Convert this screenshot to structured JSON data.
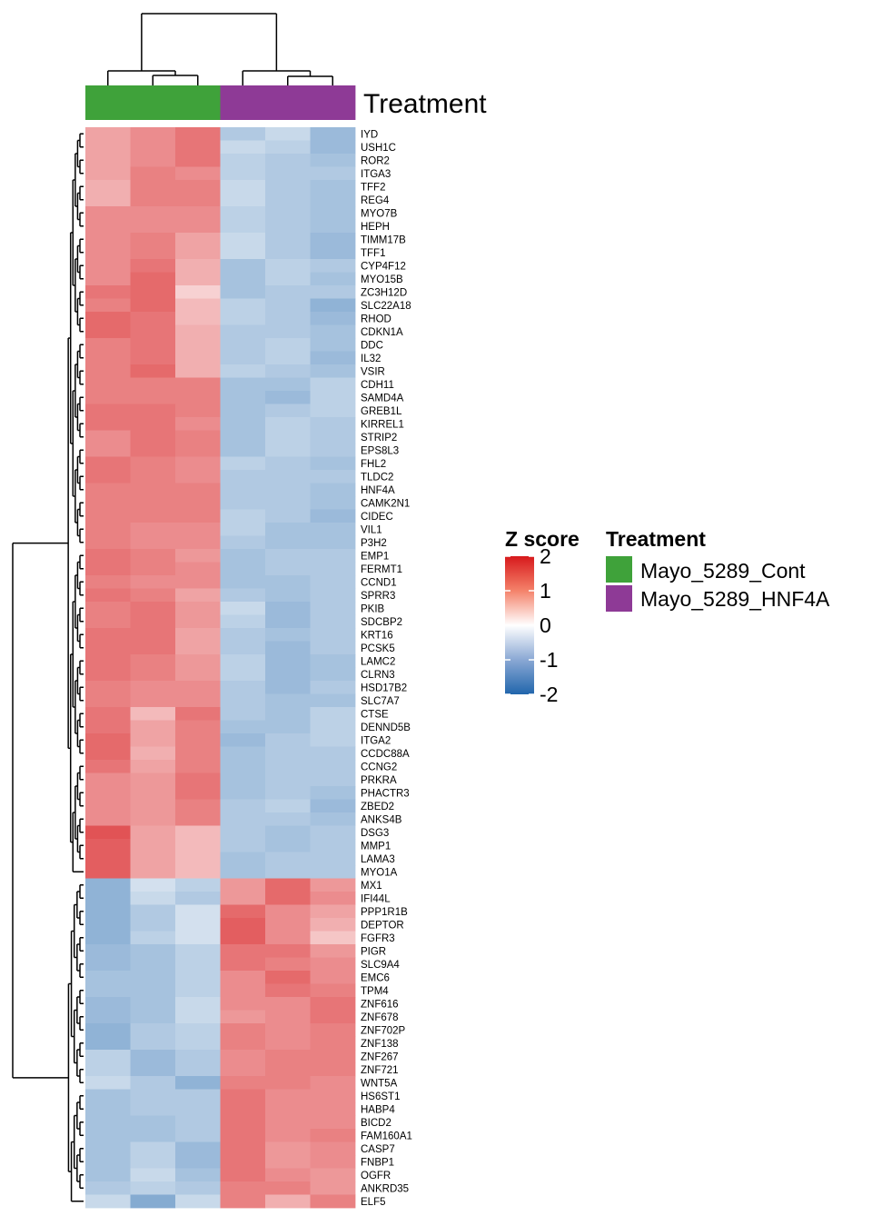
{
  "chart_data": {
    "type": "heatmap",
    "legend_title": "Z score",
    "scale_ticks": [
      "2",
      "1",
      "0",
      "-1",
      "-2"
    ],
    "scale_range": [
      -2,
      2
    ],
    "scale_colors": {
      "high": "#d7191c",
      "mid": "#ffffff",
      "low": "#2166ac"
    },
    "annotation": {
      "title": "Treatment",
      "groups": [
        {
          "name": "Mayo_5289_Cont",
          "color": "#3fa23a"
        },
        {
          "name": "Mayo_5289_HNF4A",
          "color": "#8e3a96"
        }
      ],
      "columns": [
        0,
        0,
        0,
        1,
        1,
        1
      ]
    },
    "rows": [
      "IYD",
      "USH1C",
      "ROR2",
      "ITGA3",
      "TFF2",
      "REG4",
      "MYO7B",
      "HEPH",
      "TIMM17B",
      "TFF1",
      "CYP4F12",
      "MYO15B",
      "ZC3H12D",
      "SLC22A18",
      "RHOD",
      "CDKN1A",
      "DDC",
      "IL32",
      "VSIR",
      "CDH11",
      "SAMD4A",
      "GREB1L",
      "KIRREL1",
      "STRIP2",
      "EPS8L3",
      "FHL2",
      "TLDC2",
      "HNF4A",
      "CAMK2N1",
      "CIDEC",
      "VIL1",
      "P3H2",
      "EMP1",
      "FERMT1",
      "CCND1",
      "SPRR3",
      "PKIB",
      "SDCBP2",
      "KRT16",
      "PCSK5",
      "LAMC2",
      "CLRN3",
      "HSD17B2",
      "SLC7A7",
      "CTSE",
      "DENND5B",
      "ITGA2",
      "CCDC88A",
      "CCNG2",
      "PRKRA",
      "PHACTR3",
      "ZBED2",
      "ANKS4B",
      "DSG3",
      "MMP1",
      "LAMA3",
      "MYO1A",
      "MX1",
      "IFI44L",
      "PPP1R1B",
      "DEPTOR",
      "FGFR3",
      "PIGR",
      "SLC9A4",
      "EMC6",
      "TPM4",
      "ZNF616",
      "ZNF678",
      "ZNF702P",
      "ZNF138",
      "ZNF267",
      "ZNF721",
      "WNT5A",
      "HS6ST1",
      "HABP4",
      "BICD2",
      "FAM160A1",
      "CASP7",
      "FNBP1",
      "OGFR",
      "ANKRD35",
      "ELF5"
    ],
    "values": [
      [
        0.8,
        1.0,
        1.2,
        -0.7,
        -0.5,
        -0.9
      ],
      [
        0.8,
        1.0,
        1.2,
        -0.5,
        -0.6,
        -0.9
      ],
      [
        0.8,
        1.0,
        1.2,
        -0.6,
        -0.7,
        -0.8
      ],
      [
        0.8,
        1.1,
        1.0,
        -0.6,
        -0.7,
        -0.7
      ],
      [
        0.7,
        1.1,
        1.1,
        -0.5,
        -0.7,
        -0.8
      ],
      [
        0.7,
        1.1,
        1.1,
        -0.5,
        -0.7,
        -0.8
      ],
      [
        1.0,
        1.0,
        1.0,
        -0.6,
        -0.7,
        -0.8
      ],
      [
        1.0,
        1.0,
        1.0,
        -0.6,
        -0.7,
        -0.8
      ],
      [
        1.0,
        1.1,
        0.8,
        -0.5,
        -0.7,
        -0.9
      ],
      [
        1.0,
        1.1,
        0.8,
        -0.5,
        -0.7,
        -0.9
      ],
      [
        1.0,
        1.2,
        0.7,
        -0.8,
        -0.6,
        -0.7
      ],
      [
        1.0,
        1.3,
        0.7,
        -0.8,
        -0.6,
        -0.8
      ],
      [
        1.2,
        1.3,
        0.4,
        -0.8,
        -0.7,
        -0.7
      ],
      [
        1.1,
        1.3,
        0.6,
        -0.6,
        -0.7,
        -1.0
      ],
      [
        1.3,
        1.2,
        0.6,
        -0.6,
        -0.7,
        -0.9
      ],
      [
        1.3,
        1.2,
        0.7,
        -0.7,
        -0.7,
        -0.8
      ],
      [
        1.1,
        1.2,
        0.7,
        -0.7,
        -0.6,
        -0.8
      ],
      [
        1.1,
        1.2,
        0.7,
        -0.7,
        -0.6,
        -0.9
      ],
      [
        1.1,
        1.3,
        0.7,
        -0.6,
        -0.7,
        -0.8
      ],
      [
        1.1,
        1.1,
        1.1,
        -0.8,
        -0.8,
        -0.6
      ],
      [
        1.1,
        1.1,
        1.1,
        -0.8,
        -0.9,
        -0.6
      ],
      [
        1.2,
        1.2,
        1.1,
        -0.8,
        -0.7,
        -0.6
      ],
      [
        1.2,
        1.2,
        1.0,
        -0.8,
        -0.6,
        -0.7
      ],
      [
        1.0,
        1.2,
        1.1,
        -0.8,
        -0.6,
        -0.7
      ],
      [
        1.0,
        1.2,
        1.1,
        -0.8,
        -0.6,
        -0.7
      ],
      [
        1.2,
        1.1,
        1.0,
        -0.6,
        -0.7,
        -0.8
      ],
      [
        1.2,
        1.1,
        1.0,
        -0.7,
        -0.7,
        -0.7
      ],
      [
        1.1,
        1.1,
        1.1,
        -0.7,
        -0.7,
        -0.8
      ],
      [
        1.1,
        1.1,
        1.1,
        -0.7,
        -0.7,
        -0.8
      ],
      [
        1.1,
        1.1,
        1.1,
        -0.6,
        -0.7,
        -0.9
      ],
      [
        1.1,
        1.0,
        1.0,
        -0.6,
        -0.8,
        -0.8
      ],
      [
        1.1,
        1.0,
        1.0,
        -0.7,
        -0.8,
        -0.8
      ],
      [
        1.2,
        1.1,
        0.9,
        -0.8,
        -0.7,
        -0.7
      ],
      [
        1.2,
        1.1,
        1.0,
        -0.8,
        -0.7,
        -0.7
      ],
      [
        1.1,
        1.0,
        1.0,
        -0.8,
        -0.8,
        -0.7
      ],
      [
        1.2,
        1.1,
        0.8,
        -0.7,
        -0.8,
        -0.7
      ],
      [
        1.1,
        1.2,
        0.9,
        -0.5,
        -0.9,
        -0.7
      ],
      [
        1.1,
        1.2,
        0.9,
        -0.6,
        -0.9,
        -0.7
      ],
      [
        1.2,
        1.2,
        0.8,
        -0.7,
        -0.8,
        -0.7
      ],
      [
        1.2,
        1.2,
        0.8,
        -0.7,
        -0.9,
        -0.7
      ],
      [
        1.2,
        1.1,
        0.9,
        -0.6,
        -0.9,
        -0.8
      ],
      [
        1.2,
        1.1,
        0.9,
        -0.6,
        -0.9,
        -0.8
      ],
      [
        1.1,
        1.0,
        1.0,
        -0.7,
        -0.9,
        -0.7
      ],
      [
        1.1,
        1.0,
        1.0,
        -0.7,
        -0.8,
        -0.8
      ],
      [
        1.2,
        0.6,
        1.2,
        -0.7,
        -0.8,
        -0.6
      ],
      [
        1.2,
        0.8,
        1.1,
        -0.8,
        -0.8,
        -0.6
      ],
      [
        1.3,
        0.8,
        1.1,
        -0.9,
        -0.7,
        -0.6
      ],
      [
        1.3,
        0.7,
        1.1,
        -0.8,
        -0.7,
        -0.7
      ],
      [
        1.2,
        0.8,
        1.1,
        -0.8,
        -0.7,
        -0.7
      ],
      [
        1.0,
        0.9,
        1.2,
        -0.8,
        -0.7,
        -0.7
      ],
      [
        1.0,
        0.9,
        1.2,
        -0.8,
        -0.7,
        -0.8
      ],
      [
        1.0,
        0.9,
        1.1,
        -0.7,
        -0.6,
        -0.9
      ],
      [
        1.0,
        0.9,
        1.1,
        -0.7,
        -0.7,
        -0.8
      ],
      [
        1.5,
        0.8,
        0.6,
        -0.7,
        -0.8,
        -0.7
      ],
      [
        1.4,
        0.8,
        0.6,
        -0.7,
        -0.8,
        -0.7
      ],
      [
        1.4,
        0.8,
        0.6,
        -0.8,
        -0.7,
        -0.7
      ],
      [
        1.4,
        0.8,
        0.6,
        -0.8,
        -0.7,
        -0.7
      ],
      [
        -1.0,
        -0.4,
        -0.6,
        0.9,
        1.3,
        0.9
      ],
      [
        -1.0,
        -0.5,
        -0.7,
        0.9,
        1.3,
        1.0
      ],
      [
        -1.0,
        -0.7,
        -0.4,
        1.3,
        1.0,
        0.8
      ],
      [
        -1.0,
        -0.7,
        -0.4,
        1.4,
        1.0,
        0.7
      ],
      [
        -1.0,
        -0.6,
        -0.4,
        1.4,
        1.0,
        0.5
      ],
      [
        -0.9,
        -0.8,
        -0.6,
        1.2,
        1.2,
        0.9
      ],
      [
        -0.9,
        -0.8,
        -0.6,
        1.2,
        1.1,
        1.0
      ],
      [
        -0.8,
        -0.8,
        -0.6,
        1.0,
        1.3,
        1.0
      ],
      [
        -0.8,
        -0.8,
        -0.6,
        1.0,
        1.2,
        1.1
      ],
      [
        -0.9,
        -0.8,
        -0.5,
        1.0,
        1.0,
        1.2
      ],
      [
        -0.9,
        -0.8,
        -0.5,
        0.9,
        1.0,
        1.2
      ],
      [
        -1.0,
        -0.7,
        -0.6,
        1.1,
        1.0,
        1.1
      ],
      [
        -1.0,
        -0.7,
        -0.6,
        1.1,
        1.0,
        1.1
      ],
      [
        -0.6,
        -0.9,
        -0.7,
        1.0,
        1.1,
        1.1
      ],
      [
        -0.6,
        -0.9,
        -0.7,
        1.0,
        1.1,
        1.1
      ],
      [
        -0.5,
        -0.7,
        -1.0,
        1.1,
        1.1,
        1.0
      ],
      [
        -0.8,
        -0.7,
        -0.7,
        1.2,
        1.0,
        1.0
      ],
      [
        -0.8,
        -0.7,
        -0.7,
        1.2,
        1.0,
        1.0
      ],
      [
        -0.8,
        -0.8,
        -0.7,
        1.2,
        1.0,
        1.0
      ],
      [
        -0.8,
        -0.8,
        -0.7,
        1.2,
        1.0,
        1.1
      ],
      [
        -0.8,
        -0.6,
        -0.9,
        1.2,
        0.9,
        1.0
      ],
      [
        -0.8,
        -0.6,
        -0.9,
        1.2,
        0.9,
        1.0
      ],
      [
        -0.8,
        -0.5,
        -0.8,
        1.2,
        1.0,
        0.9
      ],
      [
        -0.7,
        -0.6,
        -0.7,
        1.1,
        1.1,
        0.9
      ],
      [
        -0.5,
        -1.1,
        -0.5,
        1.1,
        0.7,
        1.1
      ]
    ]
  }
}
